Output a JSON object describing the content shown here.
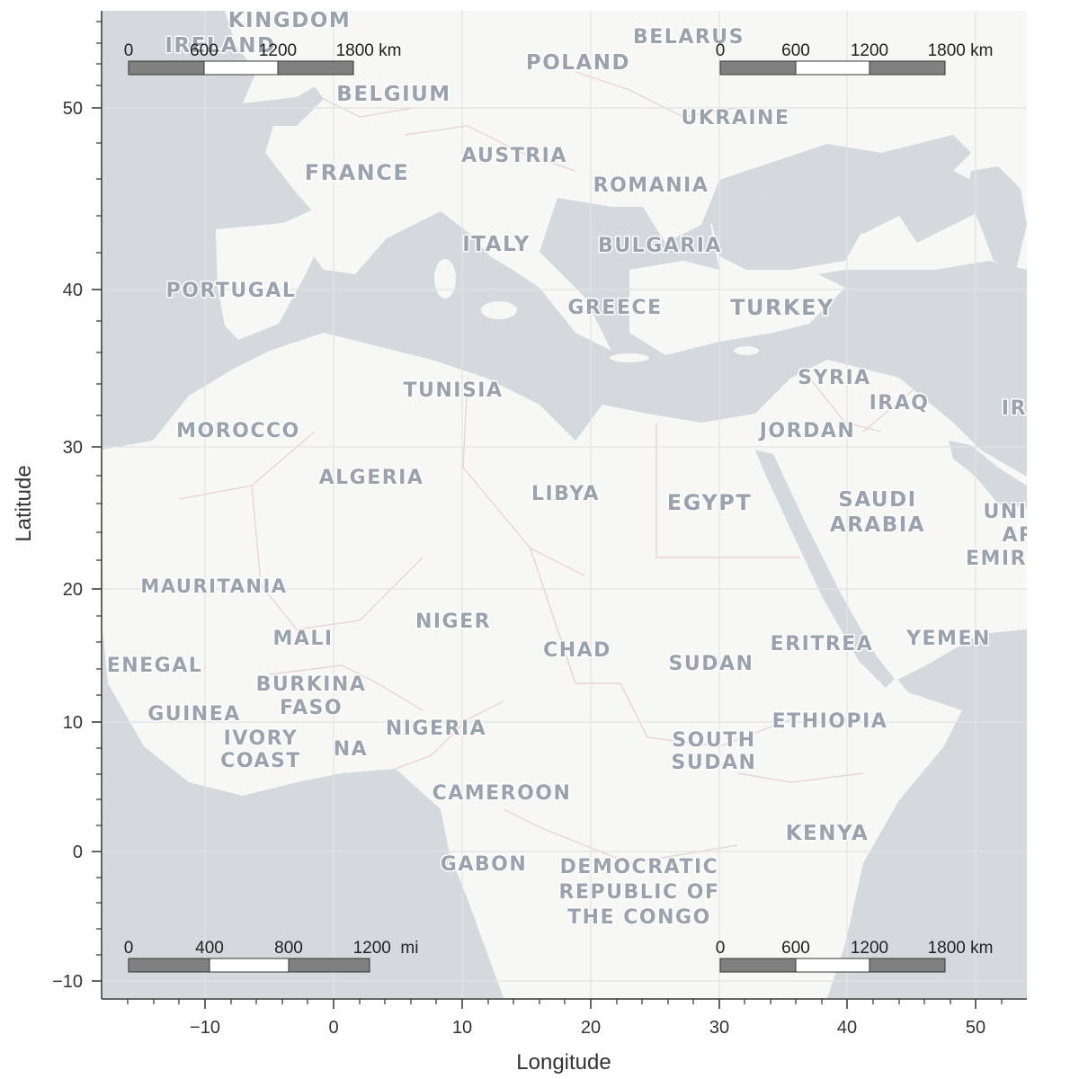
{
  "axes": {
    "xlabel": "Longitude",
    "ylabel": "Latitude",
    "x_ticks": [
      "−10",
      "0",
      "10",
      "20",
      "30",
      "40",
      "50"
    ],
    "y_ticks": [
      "50",
      "40",
      "30",
      "20",
      "10",
      "0",
      "−10"
    ]
  },
  "scale_bars": [
    {
      "position": "top-left",
      "labels": [
        "0",
        "600",
        "1200",
        "1800 km"
      ]
    },
    {
      "position": "top-right",
      "labels": [
        "0",
        "600",
        "1200",
        "1800 km"
      ]
    },
    {
      "position": "bottom-left",
      "labels": [
        "0",
        "400",
        "800",
        "1200  mi"
      ]
    },
    {
      "position": "bottom-right",
      "labels": [
        "0",
        "600",
        "1200",
        "1800 km"
      ]
    }
  ],
  "map_labels": [
    {
      "id": "kingdom",
      "text": "KINGDOM"
    },
    {
      "id": "ireland",
      "text": "IRELAND"
    },
    {
      "id": "belarus",
      "text": "BELARUS"
    },
    {
      "id": "poland",
      "text": "POLAND"
    },
    {
      "id": "belgium",
      "text": "BELGIUM"
    },
    {
      "id": "ukraine",
      "text": "UKRAINE"
    },
    {
      "id": "austria",
      "text": "AUSTRIA"
    },
    {
      "id": "france",
      "text": "FRANCE"
    },
    {
      "id": "romania",
      "text": "ROMANIA"
    },
    {
      "id": "italy",
      "text": "ITALY"
    },
    {
      "id": "bulgaria",
      "text": "BULGARIA"
    },
    {
      "id": "portugal",
      "text": "PORTUGAL"
    },
    {
      "id": "greece",
      "text": "GREECE"
    },
    {
      "id": "turkey",
      "text": "TURKEY"
    },
    {
      "id": "syria",
      "text": "SYRIA"
    },
    {
      "id": "tunisia",
      "text": "TUNISIA"
    },
    {
      "id": "iraq",
      "text": "IRAQ"
    },
    {
      "id": "ir",
      "text": "IR"
    },
    {
      "id": "morocco",
      "text": "MOROCCO"
    },
    {
      "id": "jordan",
      "text": "JORDAN"
    },
    {
      "id": "algeria",
      "text": "ALGERIA"
    },
    {
      "id": "libya",
      "text": "LIBYA"
    },
    {
      "id": "egypt",
      "text": "EGYPT"
    },
    {
      "id": "saudi",
      "text": "SAUDI"
    },
    {
      "id": "arabia",
      "text": "ARABIA"
    },
    {
      "id": "uni",
      "text": "UNI"
    },
    {
      "id": "ar",
      "text": "AR"
    },
    {
      "id": "emir",
      "text": "EMIR"
    },
    {
      "id": "mauritania",
      "text": "MAURITANIA"
    },
    {
      "id": "niger",
      "text": "NIGER"
    },
    {
      "id": "mali",
      "text": "MALI"
    },
    {
      "id": "chad",
      "text": "CHAD"
    },
    {
      "id": "eritrea",
      "text": "ERITREA"
    },
    {
      "id": "yemen",
      "text": "YEMEN"
    },
    {
      "id": "senegal",
      "text": "ENEGAL"
    },
    {
      "id": "sudan",
      "text": "SUDAN"
    },
    {
      "id": "burkina",
      "text": "BURKINA"
    },
    {
      "id": "faso",
      "text": "FASO"
    },
    {
      "id": "guinea",
      "text": "GUINEA"
    },
    {
      "id": "ethiopia",
      "text": "ETHIOPIA"
    },
    {
      "id": "nigeria",
      "text": "NIGERIA"
    },
    {
      "id": "ivory",
      "text": "IVORY"
    },
    {
      "id": "coast",
      "text": "COAST"
    },
    {
      "id": "na",
      "text": "NA"
    },
    {
      "id": "south",
      "text": "SOUTH"
    },
    {
      "id": "ssudan",
      "text": "SUDAN"
    },
    {
      "id": "cameroon",
      "text": "CAMEROON"
    },
    {
      "id": "kenya",
      "text": "KENYA"
    },
    {
      "id": "gabon",
      "text": "GABON"
    },
    {
      "id": "democratic",
      "text": "DEMOCRATIC"
    },
    {
      "id": "republic",
      "text": "REPUBLIC OF"
    },
    {
      "id": "congo",
      "text": "THE CONGO"
    }
  ],
  "colors": {
    "land": "#f7f7f6",
    "water": "#d4d9dd",
    "border": "#e9d4d6",
    "grid": "#e3e3e3",
    "label": "#9aa3ad"
  }
}
